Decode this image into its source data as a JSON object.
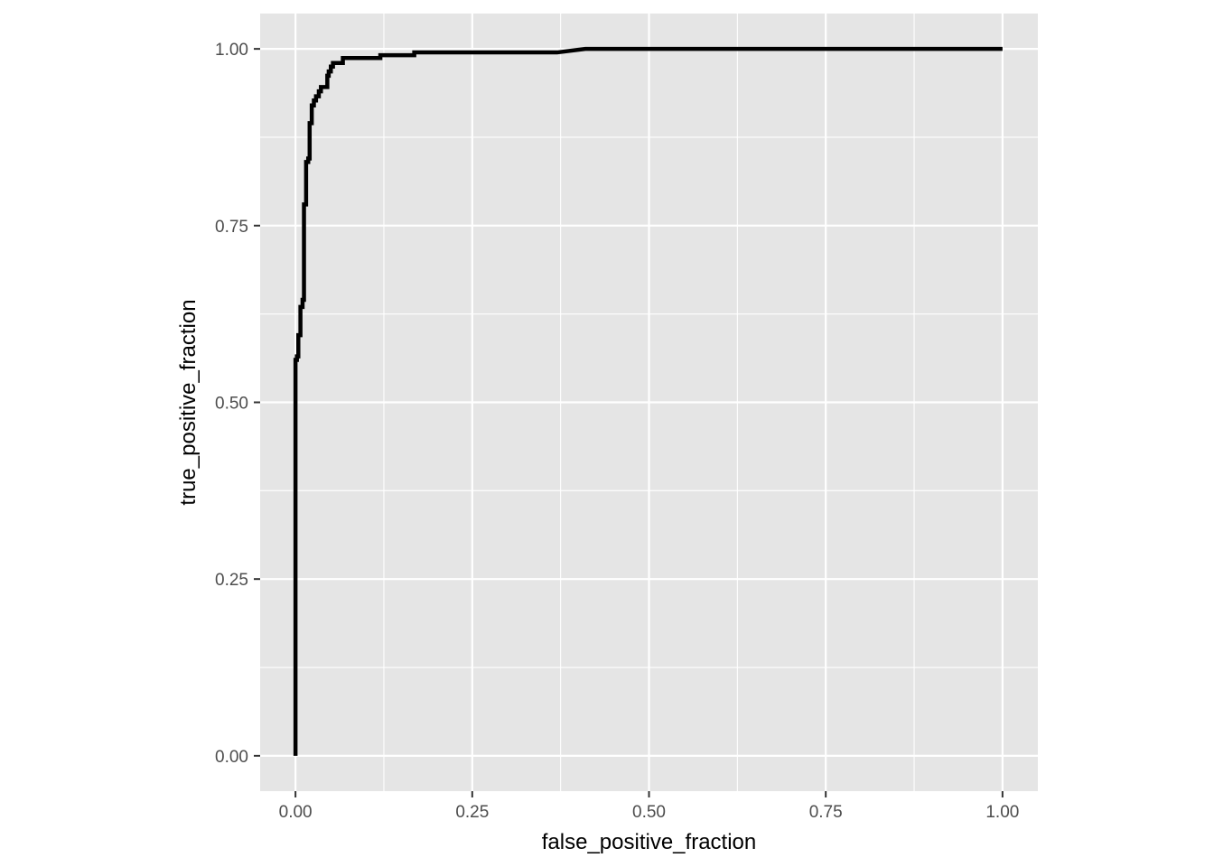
{
  "chart_data": {
    "type": "line",
    "title": "",
    "xlabel": "false_positive_fraction",
    "ylabel": "true_positive_fraction",
    "xlim": [
      -0.05,
      1.05
    ],
    "ylim": [
      -0.05,
      1.05
    ],
    "x_ticks": [
      0.0,
      0.25,
      0.5,
      0.75,
      1.0
    ],
    "x_tick_labels": [
      "0.00",
      "0.25",
      "0.50",
      "0.75",
      "1.00"
    ],
    "y_ticks": [
      0.0,
      0.25,
      0.5,
      0.75,
      1.0
    ],
    "y_tick_labels": [
      "0.00",
      "0.25",
      "0.50",
      "0.75",
      "1.00"
    ],
    "grid": true,
    "legend": "none",
    "colors": {
      "panel": "#e5e5e5",
      "grid": "#ffffff",
      "line": "#000000",
      "tick": "#333333"
    },
    "series": [
      {
        "points": [
          [
            0.0,
            0.0
          ],
          [
            0.0,
            0.56
          ],
          [
            0.002,
            0.56
          ],
          [
            0.002,
            0.565
          ],
          [
            0.004,
            0.565
          ],
          [
            0.004,
            0.595
          ],
          [
            0.007,
            0.595
          ],
          [
            0.007,
            0.635
          ],
          [
            0.01,
            0.635
          ],
          [
            0.01,
            0.645
          ],
          [
            0.012,
            0.645
          ],
          [
            0.012,
            0.78
          ],
          [
            0.015,
            0.78
          ],
          [
            0.015,
            0.84
          ],
          [
            0.018,
            0.84
          ],
          [
            0.018,
            0.845
          ],
          [
            0.02,
            0.845
          ],
          [
            0.02,
            0.895
          ],
          [
            0.023,
            0.895
          ],
          [
            0.023,
            0.92
          ],
          [
            0.026,
            0.92
          ],
          [
            0.026,
            0.927
          ],
          [
            0.029,
            0.927
          ],
          [
            0.029,
            0.933
          ],
          [
            0.033,
            0.933
          ],
          [
            0.033,
            0.94
          ],
          [
            0.036,
            0.94
          ],
          [
            0.036,
            0.946
          ],
          [
            0.045,
            0.946
          ],
          [
            0.045,
            0.962
          ],
          [
            0.047,
            0.962
          ],
          [
            0.047,
            0.968
          ],
          [
            0.05,
            0.968
          ],
          [
            0.05,
            0.975
          ],
          [
            0.053,
            0.975
          ],
          [
            0.053,
            0.98
          ],
          [
            0.067,
            0.98
          ],
          [
            0.067,
            0.987
          ],
          [
            0.088,
            0.987
          ],
          [
            0.12,
            0.987
          ],
          [
            0.12,
            0.991
          ],
          [
            0.168,
            0.991
          ],
          [
            0.168,
            0.995
          ],
          [
            0.37,
            0.995
          ],
          [
            0.41,
            1.0
          ],
          [
            1.0,
            1.0
          ]
        ]
      }
    ]
  }
}
